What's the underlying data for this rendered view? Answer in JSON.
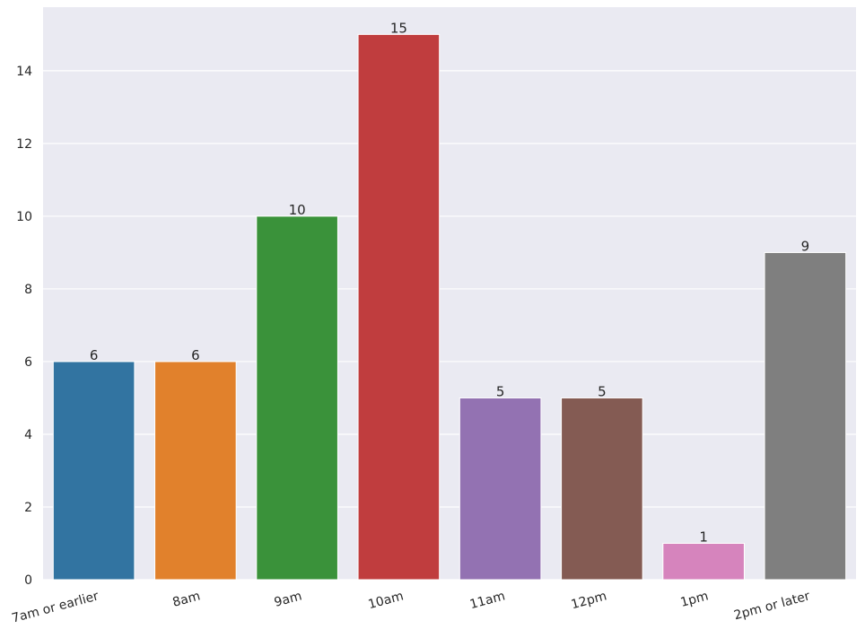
{
  "chart_data": {
    "type": "bar",
    "title": "",
    "xlabel": "",
    "ylabel": "",
    "categories": [
      "7am or earlier",
      "8am",
      "9am",
      "10am",
      "11am",
      "12pm",
      "1pm",
      "2pm or later"
    ],
    "values": [
      6,
      6,
      10,
      15,
      5,
      5,
      1,
      9
    ],
    "data_labels": [
      "6",
      "6",
      "10",
      "15",
      "5",
      "5",
      "1",
      "9"
    ],
    "ylim": [
      0,
      15.75
    ],
    "yticks": [
      0,
      2,
      4,
      6,
      8,
      10,
      12,
      14
    ],
    "ytick_labels": [
      "0",
      "2",
      "4",
      "6",
      "8",
      "10",
      "12",
      "14"
    ],
    "grid": true,
    "legend": "none",
    "background_color": "#eaeaf2",
    "grid_color": "#ffffff",
    "bar_colors": [
      "#3274a1",
      "#e1812c",
      "#3a923a",
      "#c03d3e",
      "#9372b2",
      "#845b53",
      "#d684bd",
      "#7f7f7f"
    ]
  }
}
